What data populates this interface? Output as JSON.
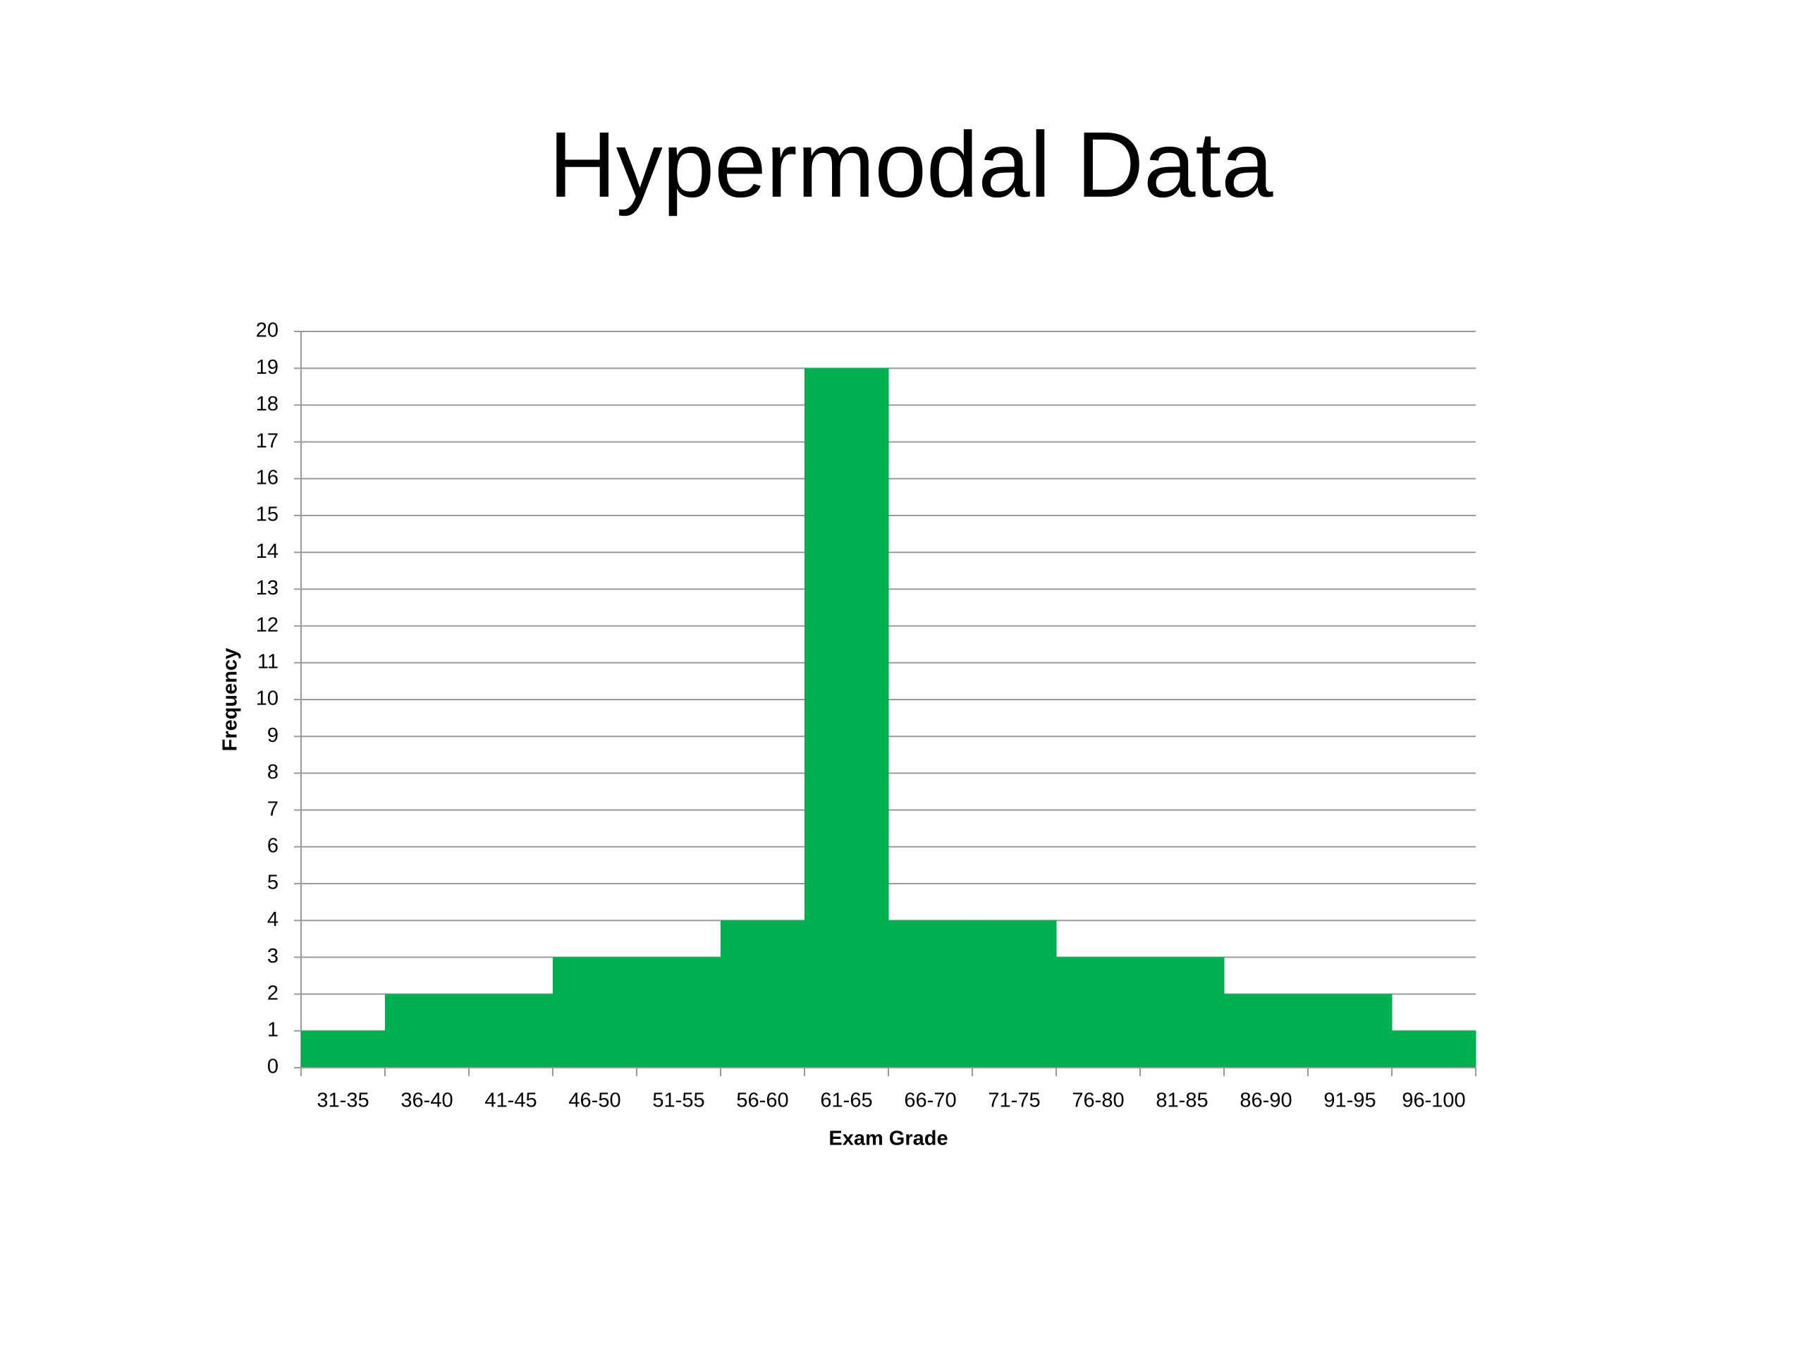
{
  "chart_data": {
    "type": "bar",
    "title": "Hypermodal Data",
    "x_label": "Exam Grade",
    "y_label": "Frequency",
    "categories": [
      "31-35",
      "36-40",
      "41-45",
      "46-50",
      "51-55",
      "56-60",
      "61-65",
      "66-70",
      "71-75",
      "76-80",
      "81-85",
      "86-90",
      "91-95",
      "96-100"
    ],
    "values": [
      1,
      2,
      2,
      3,
      3,
      4,
      19,
      4,
      4,
      3,
      3,
      2,
      2,
      1
    ],
    "color": "#00b050",
    "ylim": [
      0,
      20
    ],
    "yticks": [
      0,
      1,
      2,
      3,
      4,
      5,
      6,
      7,
      8,
      9,
      10,
      11,
      12,
      13,
      14,
      15,
      16,
      17,
      18,
      19,
      20
    ],
    "grid": true
  }
}
